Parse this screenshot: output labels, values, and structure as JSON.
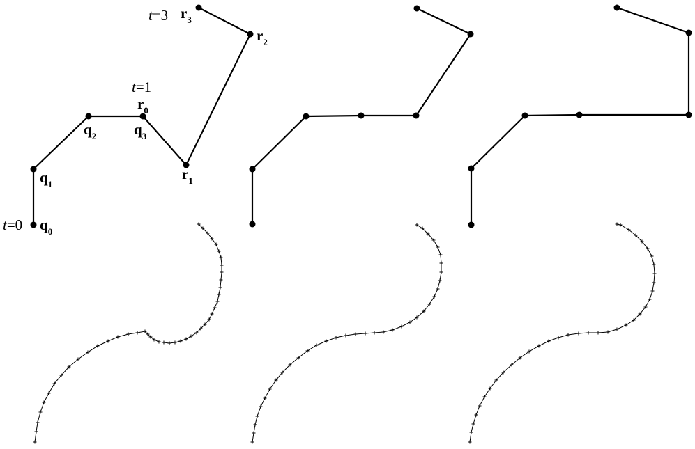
{
  "figure": {
    "labels": {
      "t0": {
        "var": "t",
        "rest": "=0"
      },
      "t1": {
        "var": "t",
        "rest": "=1"
      },
      "t3": {
        "var": "t",
        "rest": "=3"
      },
      "q0": {
        "base": "q",
        "sub": "0"
      },
      "q1": {
        "base": "q",
        "sub": "1"
      },
      "q2": {
        "base": "q",
        "sub": "2"
      },
      "q3": {
        "base": "q",
        "sub": "3"
      },
      "r0": {
        "base": "r",
        "sub": "0"
      },
      "r1": {
        "base": "r",
        "sub": "1"
      },
      "r2": {
        "base": "r",
        "sub": "2"
      },
      "r3": {
        "base": "r",
        "sub": "3"
      }
    },
    "colors": {
      "line": "#000000",
      "point": "#000000"
    }
  }
}
